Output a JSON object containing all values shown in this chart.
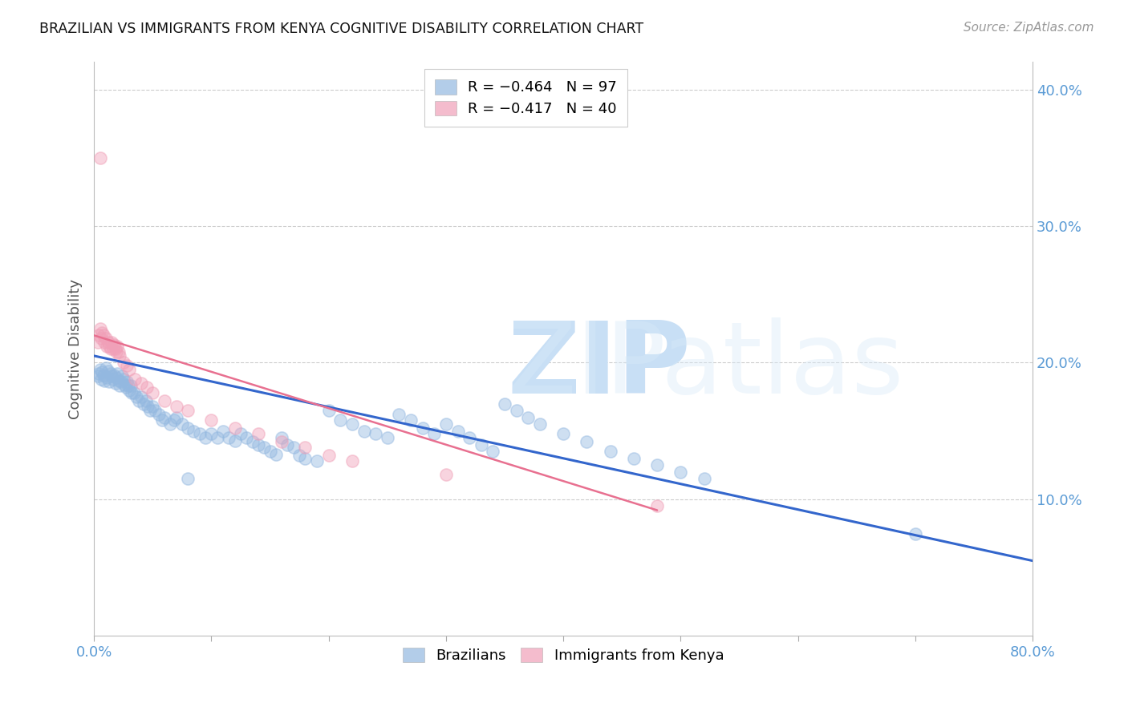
{
  "title": "BRAZILIAN VS IMMIGRANTS FROM KENYA COGNITIVE DISABILITY CORRELATION CHART",
  "source": "Source: ZipAtlas.com",
  "ylabel": "Cognitive Disability",
  "xlim": [
    0.0,
    0.8
  ],
  "ylim": [
    0.0,
    0.42
  ],
  "yticks": [
    0.1,
    0.2,
    0.3,
    0.4
  ],
  "ytick_labels": [
    "10.0%",
    "20.0%",
    "30.0%",
    "40.0%"
  ],
  "xticks": [
    0.0,
    0.1,
    0.2,
    0.3,
    0.4,
    0.5,
    0.6,
    0.7,
    0.8
  ],
  "brazil_color": "#93b8e0",
  "kenya_color": "#f0a0b8",
  "brazil_R": -0.464,
  "brazil_N": 97,
  "kenya_R": -0.417,
  "kenya_N": 40,
  "legend_label_brazil": "R = −0.464   N = 97",
  "legend_label_kenya": "R = −0.417   N = 40",
  "brazil_scatter_x": [
    0.003,
    0.004,
    0.005,
    0.006,
    0.007,
    0.008,
    0.009,
    0.01,
    0.011,
    0.012,
    0.013,
    0.014,
    0.015,
    0.016,
    0.017,
    0.018,
    0.019,
    0.02,
    0.021,
    0.022,
    0.023,
    0.024,
    0.025,
    0.026,
    0.027,
    0.028,
    0.029,
    0.03,
    0.031,
    0.032,
    0.034,
    0.036,
    0.038,
    0.04,
    0.042,
    0.044,
    0.046,
    0.048,
    0.05,
    0.052,
    0.055,
    0.058,
    0.06,
    0.065,
    0.068,
    0.07,
    0.075,
    0.08,
    0.085,
    0.09,
    0.095,
    0.1,
    0.105,
    0.11,
    0.115,
    0.12,
    0.125,
    0.13,
    0.135,
    0.14,
    0.145,
    0.15,
    0.155,
    0.16,
    0.165,
    0.17,
    0.175,
    0.18,
    0.19,
    0.2,
    0.21,
    0.22,
    0.23,
    0.24,
    0.25,
    0.26,
    0.27,
    0.28,
    0.29,
    0.3,
    0.31,
    0.32,
    0.33,
    0.34,
    0.35,
    0.36,
    0.37,
    0.38,
    0.4,
    0.42,
    0.44,
    0.46,
    0.48,
    0.5,
    0.52,
    0.7,
    0.08
  ],
  "brazil_scatter_y": [
    0.19,
    0.192,
    0.195,
    0.188,
    0.193,
    0.191,
    0.187,
    0.196,
    0.189,
    0.194,
    0.186,
    0.192,
    0.19,
    0.188,
    0.191,
    0.185,
    0.189,
    0.192,
    0.187,
    0.183,
    0.186,
    0.19,
    0.188,
    0.184,
    0.182,
    0.186,
    0.183,
    0.18,
    0.183,
    0.178,
    0.178,
    0.175,
    0.172,
    0.175,
    0.17,
    0.172,
    0.168,
    0.165,
    0.168,
    0.165,
    0.162,
    0.158,
    0.16,
    0.155,
    0.158,
    0.16,
    0.155,
    0.152,
    0.15,
    0.148,
    0.145,
    0.148,
    0.145,
    0.15,
    0.145,
    0.143,
    0.148,
    0.145,
    0.142,
    0.14,
    0.138,
    0.135,
    0.133,
    0.145,
    0.14,
    0.138,
    0.132,
    0.13,
    0.128,
    0.165,
    0.158,
    0.155,
    0.15,
    0.148,
    0.145,
    0.162,
    0.158,
    0.152,
    0.148,
    0.155,
    0.15,
    0.145,
    0.14,
    0.135,
    0.17,
    0.165,
    0.16,
    0.155,
    0.148,
    0.142,
    0.135,
    0.13,
    0.125,
    0.12,
    0.115,
    0.075,
    0.115
  ],
  "kenya_scatter_x": [
    0.003,
    0.004,
    0.005,
    0.006,
    0.007,
    0.008,
    0.009,
    0.01,
    0.011,
    0.012,
    0.013,
    0.014,
    0.015,
    0.016,
    0.017,
    0.018,
    0.019,
    0.02,
    0.021,
    0.022,
    0.025,
    0.028,
    0.03,
    0.035,
    0.04,
    0.045,
    0.05,
    0.06,
    0.07,
    0.08,
    0.1,
    0.12,
    0.14,
    0.16,
    0.18,
    0.2,
    0.22,
    0.3,
    0.48,
    0.005
  ],
  "kenya_scatter_y": [
    0.215,
    0.22,
    0.225,
    0.218,
    0.222,
    0.22,
    0.215,
    0.218,
    0.212,
    0.215,
    0.212,
    0.21,
    0.215,
    0.21,
    0.213,
    0.21,
    0.208,
    0.212,
    0.208,
    0.205,
    0.2,
    0.198,
    0.195,
    0.188,
    0.185,
    0.182,
    0.178,
    0.172,
    0.168,
    0.165,
    0.158,
    0.152,
    0.148,
    0.142,
    0.138,
    0.132,
    0.128,
    0.118,
    0.095,
    0.35
  ],
  "brazil_trend_x": [
    0.0,
    0.8
  ],
  "brazil_trend_y": [
    0.205,
    0.055
  ],
  "kenya_trend_x": [
    0.0,
    0.48
  ],
  "kenya_trend_y": [
    0.22,
    0.092
  ],
  "background_color": "#ffffff",
  "grid_color": "#cccccc",
  "axis_color": "#bbbbbb",
  "title_color": "#111111",
  "tick_color": "#5b9bd5",
  "watermark_zip_color": "#c8dff5",
  "watermark_atlas_color": "#d8eaf8"
}
